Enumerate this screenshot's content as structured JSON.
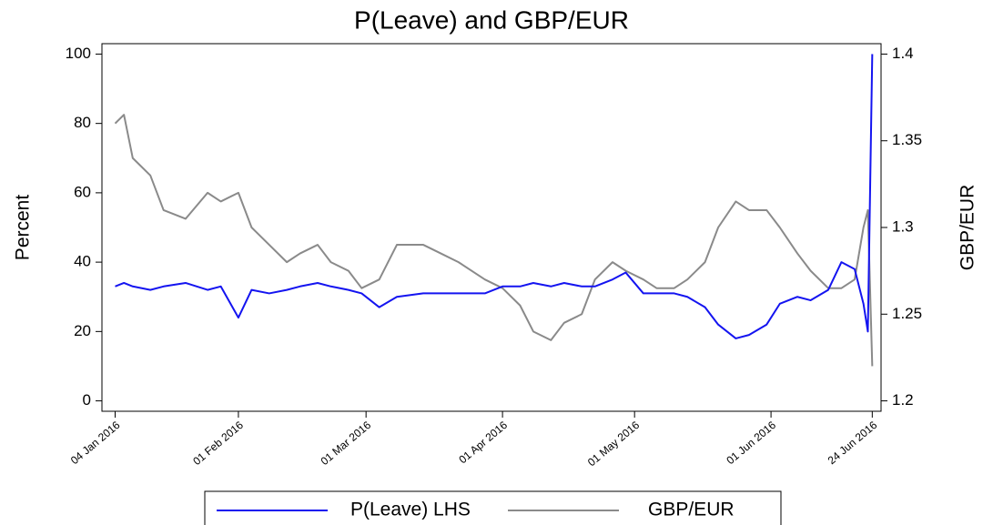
{
  "chart_data": {
    "type": "line",
    "title": "P(Leave) and GBP/EUR",
    "ylabel": "Percent",
    "y2label": "GBP/EUR",
    "x": [
      "2016-01-04",
      "2016-01-06",
      "2016-01-08",
      "2016-01-12",
      "2016-01-15",
      "2016-01-20",
      "2016-01-25",
      "2016-01-28",
      "2016-02-01",
      "2016-02-04",
      "2016-02-08",
      "2016-02-12",
      "2016-02-15",
      "2016-02-19",
      "2016-02-22",
      "2016-02-26",
      "2016-02-29",
      "2016-03-04",
      "2016-03-08",
      "2016-03-14",
      "2016-03-18",
      "2016-03-22",
      "2016-03-28",
      "2016-04-01",
      "2016-04-05",
      "2016-04-08",
      "2016-04-12",
      "2016-04-15",
      "2016-04-19",
      "2016-04-22",
      "2016-04-26",
      "2016-04-29",
      "2016-05-03",
      "2016-05-06",
      "2016-05-10",
      "2016-05-13",
      "2016-05-17",
      "2016-05-20",
      "2016-05-24",
      "2016-05-27",
      "2016-05-31",
      "2016-06-03",
      "2016-06-07",
      "2016-06-10",
      "2016-06-14",
      "2016-06-17",
      "2016-06-20",
      "2016-06-22",
      "2016-06-23",
      "2016-06-24"
    ],
    "series": [
      {
        "name": "P(Leave) LHS",
        "color": "#1414f0",
        "axis": "y",
        "values": [
          33,
          34,
          33,
          32,
          33,
          34,
          32,
          33,
          24,
          32,
          31,
          32,
          33,
          34,
          33,
          32,
          31,
          27,
          30,
          31,
          31,
          31,
          31,
          33,
          33,
          34,
          33,
          34,
          33,
          33,
          35,
          37,
          31,
          31,
          31,
          30,
          27,
          22,
          18,
          19,
          22,
          28,
          30,
          29,
          32,
          40,
          38,
          28,
          20,
          100
        ]
      },
      {
        "name": "GBP/EUR",
        "color": "#8a8a8a",
        "axis": "y2",
        "values": [
          1.36,
          1.365,
          1.34,
          1.33,
          1.31,
          1.305,
          1.32,
          1.315,
          1.32,
          1.3,
          1.29,
          1.28,
          1.285,
          1.29,
          1.28,
          1.275,
          1.265,
          1.27,
          1.29,
          1.29,
          1.285,
          1.28,
          1.27,
          1.265,
          1.255,
          1.24,
          1.235,
          1.245,
          1.25,
          1.27,
          1.28,
          1.275,
          1.27,
          1.265,
          1.265,
          1.27,
          1.28,
          1.3,
          1.315,
          1.31,
          1.31,
          1.3,
          1.285,
          1.275,
          1.265,
          1.265,
          1.27,
          1.3,
          1.31,
          1.22
        ]
      }
    ],
    "xlim": [
      "2016-01-01",
      "2016-06-26"
    ],
    "xticks": [
      {
        "value": "2016-01-04",
        "label": "04 Jan 2016"
      },
      {
        "value": "2016-02-01",
        "label": "01 Feb 2016"
      },
      {
        "value": "2016-03-01",
        "label": "01 Mar 2016"
      },
      {
        "value": "2016-04-01",
        "label": "01 Apr 2016"
      },
      {
        "value": "2016-05-01",
        "label": "01 May 2016"
      },
      {
        "value": "2016-06-01",
        "label": "01 Jun 2016"
      },
      {
        "value": "2016-06-24",
        "label": "24 Jun 2016"
      }
    ],
    "ylim": [
      -3,
      103
    ],
    "yticks": [
      0,
      20,
      40,
      60,
      80,
      100
    ],
    "y2lim": [
      1.194,
      1.406
    ],
    "y2ticks": [
      1.2,
      1.25,
      1.3,
      1.35,
      1.4
    ],
    "grid": false
  }
}
